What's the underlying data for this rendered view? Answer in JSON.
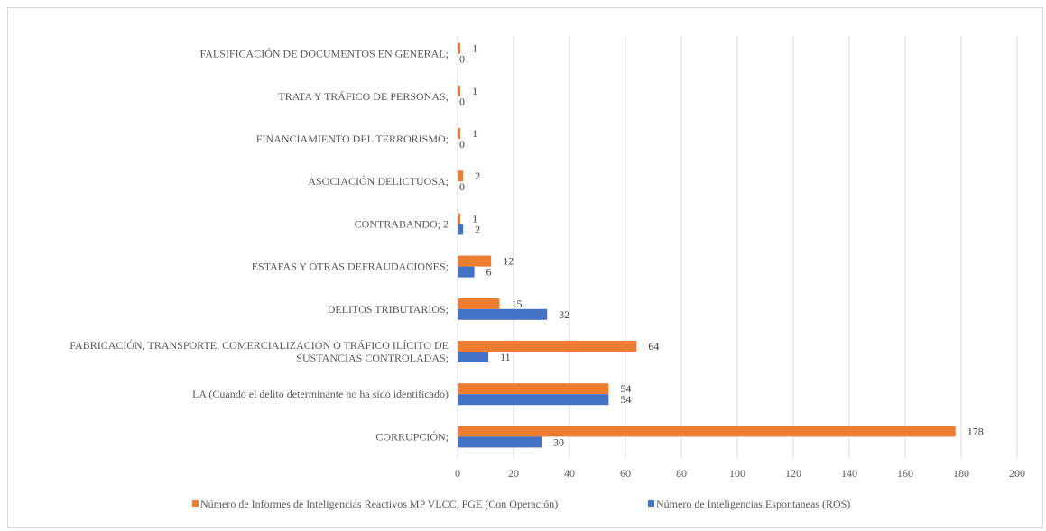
{
  "chart_data": {
    "type": "bar",
    "orientation": "horizontal",
    "categories": [
      "CORRUPCIÓN;",
      "LA (Cuando el delito determinante no ha sido identificado)",
      "FABRICACIÓN, TRANSPORTE, COMERCIALIZACIÓN O TRÁFICO ILÍCITO DE SUSTANCIAS CONTROLADAS;",
      "DELITOS TRIBUTARIOS;",
      "ESTAFAS Y OTRAS DEFRAUDACIONES;",
      "CONTRABANDO; 2",
      "ASOCIACIÓN DELICTUOSA;",
      "FINANCIAMIENTO DEL TERRORISMO;",
      "TRATA Y TRÁFICO DE PERSONAS;",
      "FALSIFICACIÓN DE DOCUMENTOS EN GENERAL;"
    ],
    "series": [
      {
        "name": "Número de Informes de  Inteligencias Reactivos MP VLCC, PGE (Con Operación)",
        "color": "#ED7D31",
        "values": [
          178,
          54,
          64,
          15,
          12,
          1,
          2,
          1,
          1,
          1
        ]
      },
      {
        "name": "Número de Inteligencias Espontaneas (ROS)",
        "color": "#4472C4",
        "values": [
          30,
          54,
          11,
          32,
          6,
          2,
          0,
          0,
          0,
          0
        ]
      }
    ],
    "xlim": [
      0,
      200
    ],
    "xticks": [
      0,
      20,
      40,
      60,
      80,
      100,
      120,
      140,
      160,
      180,
      200
    ],
    "grid": "vertical",
    "legend": "bottom",
    "title": "",
    "xlabel": "",
    "ylabel": ""
  }
}
